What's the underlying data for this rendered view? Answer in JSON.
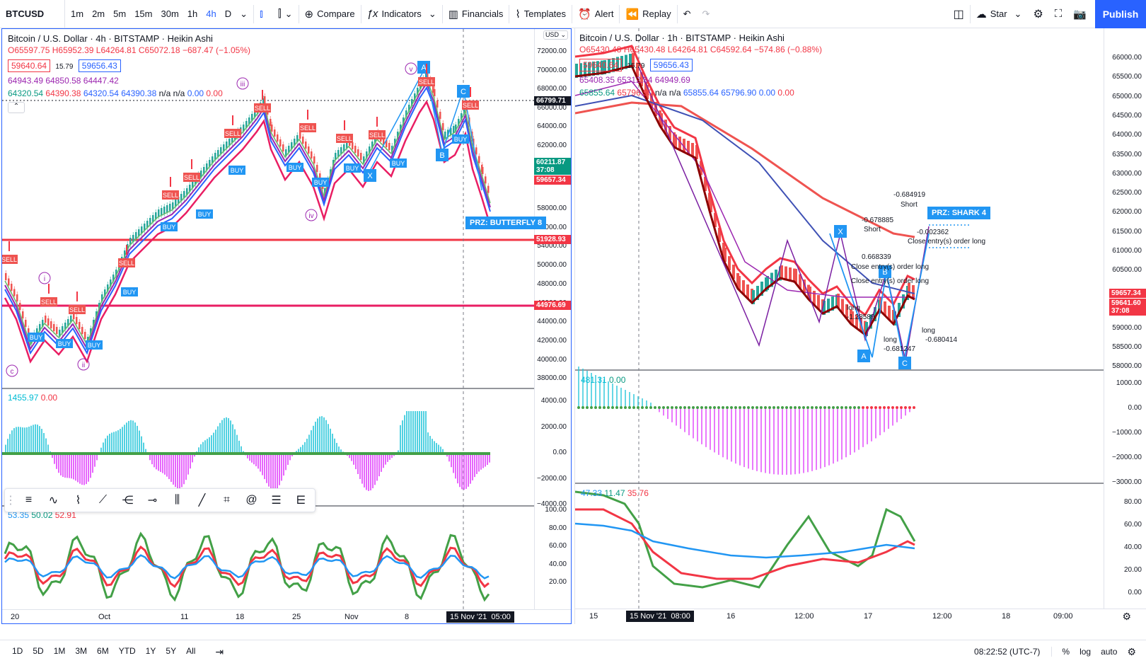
{
  "toolbar": {
    "symbol": "BTCUSD",
    "intervals": [
      "1m",
      "2m",
      "5m",
      "15m",
      "30m",
      "1h",
      "4h",
      "D"
    ],
    "compare": "Compare",
    "indicators": "Indicators",
    "financials": "Financials",
    "templates": "Templates",
    "alert": "Alert",
    "replay": "Replay",
    "star": "Star",
    "publish": "Publish"
  },
  "left": {
    "title": "Bitcoin / U.S. Dollar · 4h · BITSTAMP · Heikin Ashi",
    "ohlc": {
      "o": "O65597.75",
      "h": "H65952.39",
      "l": "L64264.81",
      "c": "C65072.18",
      "chg": "−687.47 (−1.05%)"
    },
    "bid": "59640.64",
    "spread": "15.79",
    "ask": "59656.43",
    "line1": "64943.49  64850.58  64447.42",
    "line2": [
      "64320.54",
      "64390.38",
      "64320.54",
      "64390.38",
      "n/a",
      "n/a",
      "0.00",
      "0.00"
    ],
    "currency": "USD",
    "price_ticks": [
      "72000.00",
      "70000.00",
      "68000.00",
      "66000.00",
      "64000.00",
      "62000.00",
      "58000.00",
      "56000.00",
      "54000.00",
      "50000.00",
      "48000.00",
      "46000.00",
      "44000.00",
      "42000.00",
      "40000.00",
      "38000.00"
    ],
    "price_tags": [
      {
        "v": "66799.71",
        "c": "#131722"
      },
      {
        "v": "60211.87",
        "sub": "37:08",
        "c": "#089981"
      },
      {
        "v": "59657.34",
        "c": "#f23645"
      },
      {
        "v": "51928.93",
        "c": "#f23645"
      },
      {
        "v": "44976.69",
        "c": "#f23645"
      }
    ],
    "macd_legend": [
      "1455.97",
      "0.00"
    ],
    "macd_ticks": [
      "4000.00",
      "2000.00",
      "0.00",
      "−2000.00",
      "−4000.00"
    ],
    "rsi_legend": [
      "53.35",
      "50.02",
      "52.91"
    ],
    "rsi_ticks": [
      "100.00",
      "80.00",
      "60.00",
      "40.00",
      "20.00"
    ],
    "time_labels": [
      "20",
      "Oct",
      "11",
      "18",
      "25",
      "Nov",
      "8"
    ],
    "date_label": "15 Nov '21",
    "time_label": "05:00",
    "prz": "PRZ: BUTTERFLY 8",
    "waves": [
      "i",
      "ii",
      "iii",
      "iv",
      "v",
      "c"
    ],
    "points": [
      "A",
      "B",
      "C",
      "X"
    ]
  },
  "right": {
    "title": "Bitcoin / U.S. Dollar · 1h · BITSTAMP · Heikin Ashi",
    "ohlc": {
      "o": "O65430.48",
      "h": "H65430.48",
      "l": "L64264.81",
      "c": "C64592.64",
      "chg": "−574.86 (−0.88%)"
    },
    "bid": "59640.64",
    "spread": "15.79",
    "ask": "59656.43",
    "line1": "65408.35  65312.34  64949.69",
    "line2": [
      "65855.64",
      "65796.90",
      "n/a",
      "n/a",
      "65855.64",
      "65796.90",
      "0.00",
      "0.00"
    ],
    "price_ticks": [
      "66000.00",
      "65500.00",
      "65000.00",
      "64500.00",
      "64000.00",
      "63500.00",
      "63000.00",
      "62500.00",
      "62000.00",
      "61500.00",
      "61000.00",
      "60500.00",
      "59000.00",
      "58500.00",
      "58000.00"
    ],
    "price_tags": [
      {
        "v": "59657.34",
        "c": "#f23645"
      },
      {
        "v": "59641.60",
        "sub": "37:08",
        "c": "#f23645"
      }
    ],
    "macd_legend": [
      "481.31",
      "0.00"
    ],
    "macd_ticks": [
      "1000.00",
      "0.00",
      "−1000.00",
      "−2000.00",
      "−3000.00"
    ],
    "rsi_legend": [
      "47.33",
      "11.47",
      "35.76"
    ],
    "rsi_ticks": [
      "80.00",
      "60.00",
      "40.00",
      "20.00",
      "0.00"
    ],
    "time_labels": [
      "15",
      "16",
      "12:00",
      "17",
      "12:00",
      "18",
      "09:00"
    ],
    "date_label": "15 Nov '21",
    "time_label": "08:00",
    "prz": "PRZ: SHARK 4",
    "notes": [
      "-0.684919",
      "Short",
      "-0.678885",
      "Short",
      "-0.002362",
      "Close entry(s) order long",
      "0.668339",
      "Close entry(s) order long",
      "long",
      "-1.28589",
      "long",
      "-0.681247",
      "long",
      "-0.680414",
      "Close entry(s) order long"
    ],
    "points": [
      "X",
      "A",
      "B",
      "C"
    ]
  },
  "bottom": {
    "ranges": [
      "1D",
      "5D",
      "1M",
      "3M",
      "6M",
      "YTD",
      "1Y",
      "5Y",
      "All"
    ],
    "clock": "08:22:52 (UTC-7)",
    "pct": "%",
    "log": "log",
    "auto": "auto"
  }
}
